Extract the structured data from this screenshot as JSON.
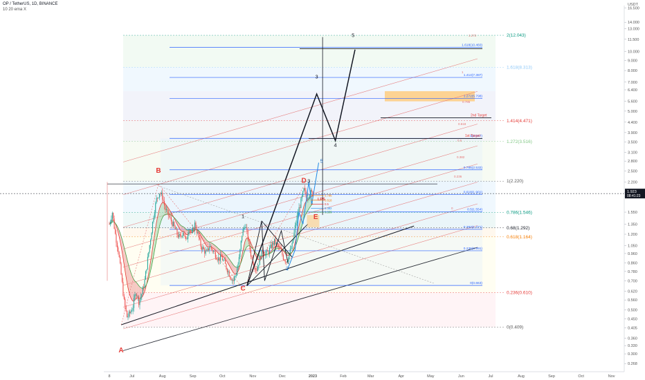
{
  "header": {
    "symbol_line": "OP / TetherUS, 1D, BINANCE",
    "indicator_line": "10 20 ema X"
  },
  "colors": {
    "up": "#26a69a",
    "down": "#ef5350",
    "fib_blue": "#2962ff",
    "fib_red": "#e53935",
    "fib_green": "#089981",
    "fib_orange": "#f57c00",
    "price_tag": "#131722"
  },
  "chart_data": {
    "type": "candlestick",
    "y_scale": "log",
    "ylim": [
      0.26,
      17
    ],
    "price_axis": {
      "title": "USDT",
      "ticks": [
        "16.500",
        "14.000",
        "13.000",
        "11.500",
        "10.000",
        "9.000",
        "8.000",
        "7.000",
        "6.400",
        "5.600",
        "5.000",
        "4.400",
        "3.900",
        "3.500",
        "3.100",
        "2.800",
        "2.500",
        "2.200",
        "1.950",
        "1.850",
        "1.550",
        "1.350",
        "1.200",
        "1.050",
        "0.960",
        "0.860",
        "0.780",
        "0.700",
        "0.620",
        "0.560",
        "0.500",
        "0.450",
        "0.405",
        "0.360",
        "0.330",
        "0.300",
        "0.268"
      ],
      "tick_values": [
        16.5,
        14.0,
        13.0,
        11.5,
        10.0,
        9.0,
        8.0,
        7.0,
        6.4,
        5.6,
        5.0,
        4.4,
        3.9,
        3.5,
        3.1,
        2.8,
        2.5,
        2.2,
        1.95,
        1.85,
        1.55,
        1.35,
        1.2,
        1.05,
        0.96,
        0.86,
        0.78,
        0.7,
        0.62,
        0.56,
        0.5,
        0.45,
        0.405,
        0.36,
        0.33,
        0.3,
        0.268
      ],
      "current_price": "1.923",
      "current_value": 1.923,
      "countdown": "08:41:23"
    },
    "time_axis": {
      "labels": [
        "8",
        "Jul",
        "Aug",
        "Sep",
        "Oct",
        "Nov",
        "Dec",
        "2023",
        "Feb",
        "Mar",
        "Apr",
        "May",
        "Jun",
        "Jul",
        "Aug",
        "Sep",
        "Oct",
        "Nov"
      ],
      "day_index": [
        0,
        23,
        54,
        85,
        115,
        146,
        176,
        207,
        238,
        266,
        297,
        327,
        358,
        388,
        419,
        450,
        480,
        511
      ]
    },
    "series": {
      "candles_note": "daily OHLC approximated from the picture",
      "ema_label": "10 20 ema"
    },
    "fib_levels_right": [
      {
        "label": "2(12.043)",
        "value": 12.043,
        "color": "#089981"
      },
      {
        "label": "1.618(8.313)",
        "value": 8.313,
        "color": "#90caf9"
      },
      {
        "label": "1.414(4.471)",
        "value": 4.471,
        "color": "#e53935"
      },
      {
        "label": "1.272(3.516)",
        "value": 3.516,
        "color": "#81c784"
      },
      {
        "label": "1(2.220)",
        "value": 2.22,
        "color": "#555555"
      },
      {
        "label": "0.786(1.546)",
        "value": 1.546,
        "color": "#089981"
      },
      {
        "label": "0.68(1.292)",
        "value": 1.292,
        "color": "#131722"
      },
      {
        "label": "0.618(1.164)",
        "value": 1.164,
        "color": "#f57c00"
      },
      {
        "label": "0.236(0.610)",
        "value": 0.61,
        "color": "#e53935"
      },
      {
        "label": "0(0.409)",
        "value": 0.409,
        "color": "#555555"
      }
    ],
    "fib_levels_inner": [
      {
        "label": "1.618(10.460)",
        "value": 10.46
      },
      {
        "label": "1.414(7.387)",
        "value": 7.387
      },
      {
        "label": "1.272(5.798)",
        "value": 5.798
      },
      {
        "label": "1(3.647)",
        "value": 3.647
      },
      {
        "label": "0.786(2.532)",
        "value": 2.532
      },
      {
        "label": "0.618(1.901)",
        "value": 1.901
      },
      {
        "label": "0.5(1.554)",
        "value": 1.554
      },
      {
        "label": "0.382(1.271)",
        "value": 1.271
      },
      {
        "label": "0.236(0.991)",
        "value": 0.991
      },
      {
        "label": "0(0.663)",
        "value": 0.663
      }
    ],
    "channel_labels": [
      "1.272",
      "1",
      "0.786",
      "0.618",
      "0.5",
      "0.382",
      "0.236",
      "0"
    ],
    "wave_labels": [
      {
        "text": "A",
        "color": "#e53935",
        "t": 12,
        "v": 0.305
      },
      {
        "text": "B",
        "color": "#e53935",
        "t": 50,
        "v": 2.45
      },
      {
        "text": "C",
        "color": "#e53935",
        "t": 136,
        "v": 0.625
      },
      {
        "text": "D",
        "color": "#e53935",
        "t": 198,
        "v": 2.18
      },
      {
        "text": "E",
        "color": "#e53935",
        "t": 210,
        "v": 1.43
      },
      {
        "text": "1",
        "color": "#131722",
        "t": 136,
        "v": 1.45
      },
      {
        "text": "2",
        "color": "#1565c0",
        "t": 181,
        "v": 0.79
      },
      {
        "text": "3",
        "color": "#131722",
        "t": 203,
        "v": 2.18
      },
      {
        "text": "5",
        "color": "#1565c0",
        "t": 216,
        "v": 2.75
      },
      {
        "text": "3",
        "color": "#131722",
        "t": 211,
        "v": 7.3
      },
      {
        "text": "4",
        "color": "#131722",
        "t": 230,
        "v": 3.3
      },
      {
        "text": "5",
        "color": "#131722",
        "t": 248,
        "v": 11.8
      }
    ],
    "targets": [
      "1st Target",
      "2nd Target"
    ],
    "pattern_tag": "LPS",
    "mini_fib_labels": [
      "0.786",
      "0.618",
      "0.5",
      "0.382",
      "0.236"
    ]
  }
}
